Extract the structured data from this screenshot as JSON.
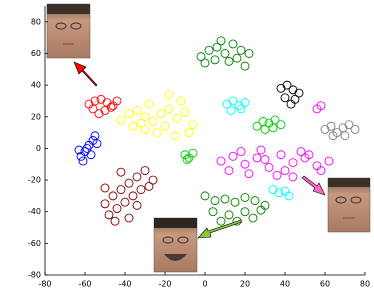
{
  "chart_data": {
    "type": "scatter",
    "xlim": [
      -80,
      80
    ],
    "xticks": [
      -80,
      -60,
      -40,
      -20,
      0,
      20,
      40,
      60,
      80
    ],
    "ylim": [
      -80,
      90
    ],
    "yticks": [
      -80,
      -60,
      -40,
      -20,
      0,
      20,
      40,
      60,
      80
    ],
    "series": [
      {
        "color": "#ff0000",
        "x": [
          -58,
          -55,
          -52,
          -49,
          -46,
          -56,
          -50,
          -47,
          -53,
          -44
        ],
        "y": [
          28,
          30,
          31,
          29,
          27,
          25,
          24,
          26,
          22,
          30
        ]
      },
      {
        "color": "#0000ff",
        "x": [
          -62,
          -60,
          -58,
          -56,
          -55,
          -61,
          -59,
          -57,
          -54,
          -63
        ],
        "y": [
          -5,
          -2,
          2,
          5,
          8,
          -8,
          0,
          -4,
          3,
          -1
        ]
      },
      {
        "color": "#ffff00",
        "x": [
          -42,
          -38,
          -34,
          -30,
          -26,
          -22,
          -18,
          -14,
          -10,
          -6,
          -36,
          -30,
          -24,
          -20,
          -15,
          -8,
          -28,
          -12,
          -32,
          -18
        ],
        "y": [
          18,
          22,
          24,
          20,
          17,
          22,
          25,
          19,
          23,
          15,
          14,
          12,
          10,
          14,
          8,
          10,
          28,
          30,
          16,
          34
        ]
      },
      {
        "color": "#800000",
        "x": [
          -50,
          -46,
          -42,
          -38,
          -34,
          -30,
          -26,
          -48,
          -44,
          -40,
          -36,
          -32,
          -28,
          -45,
          -38,
          -50,
          -42,
          -34
        ],
        "y": [
          -35,
          -30,
          -26,
          -22,
          -18,
          -14,
          -20,
          -42,
          -38,
          -34,
          -30,
          -26,
          -24,
          -46,
          -44,
          -25,
          -15,
          -36
        ]
      },
      {
        "color": "#00cc00",
        "x": [
          -10,
          -8,
          -6,
          -9
        ],
        "y": [
          -4,
          -6,
          -3,
          -7
        ]
      },
      {
        "color": "#008000",
        "x": [
          -2,
          2,
          6,
          10,
          14,
          18,
          22,
          0,
          5,
          12,
          16,
          20,
          8
        ],
        "y": [
          58,
          62,
          64,
          60,
          66,
          62,
          60,
          54,
          56,
          55,
          57,
          52,
          68
        ]
      },
      {
        "color": "#00ffff",
        "x": [
          11,
          14,
          17,
          20,
          13,
          18
        ],
        "y": [
          28,
          30,
          27,
          29,
          24,
          25
        ]
      },
      {
        "color": "#00cc00",
        "x": [
          26,
          29,
          32,
          35,
          38,
          30,
          34
        ],
        "y": [
          14,
          17,
          16,
          18,
          15,
          12,
          13
        ]
      },
      {
        "color": "#000000",
        "x": [
          38,
          41,
          44,
          47,
          40,
          45,
          43
        ],
        "y": [
          38,
          40,
          37,
          35,
          32,
          31,
          28
        ]
      },
      {
        "color": "#ff00ff",
        "x": [
          56,
          58
        ],
        "y": [
          25,
          27
        ]
      },
      {
        "color": "#808080",
        "x": [
          60,
          63,
          66,
          69,
          72,
          75,
          64,
          70
        ],
        "y": [
          12,
          14,
          10,
          13,
          15,
          12,
          8,
          8
        ]
      },
      {
        "color": "#ff00ff",
        "x": [
          8,
          14,
          20,
          26,
          32,
          38,
          44,
          50,
          56,
          62,
          12,
          22,
          30,
          40,
          48,
          58,
          18,
          36,
          52,
          28,
          44
        ],
        "y": [
          -8,
          -5,
          -10,
          -6,
          -12,
          -4,
          -9,
          -6,
          -11,
          -8,
          -14,
          -16,
          -7,
          -14,
          -2,
          -14,
          -2,
          -17,
          -4,
          -1,
          -18
        ]
      },
      {
        "color": "#00ffff",
        "x": [
          34,
          37,
          40,
          42
        ],
        "y": [
          -26,
          -28,
          -27,
          -30
        ]
      },
      {
        "color": "#008000",
        "x": [
          0,
          5,
          10,
          15,
          20,
          25,
          30,
          4,
          12,
          20,
          28,
          8,
          16,
          24
        ],
        "y": [
          -30,
          -33,
          -32,
          -34,
          -31,
          -33,
          -36,
          -40,
          -42,
          -40,
          -39,
          -46,
          -46,
          -44
        ]
      }
    ]
  }
}
